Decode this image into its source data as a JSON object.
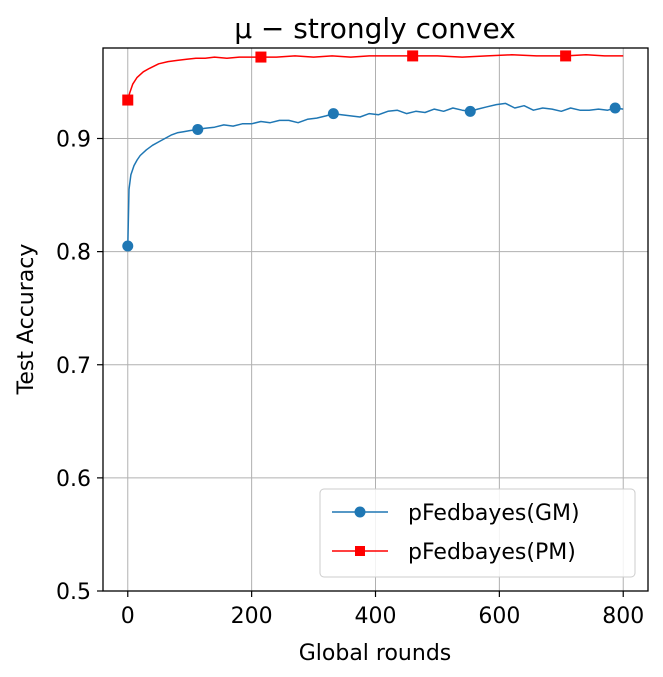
{
  "chart_data": {
    "type": "line",
    "title": "μ − strongly convex",
    "xlabel": "Global rounds",
    "ylabel": "Test Accuracy",
    "xlim": [
      -40,
      840
    ],
    "ylim": [
      0.5,
      0.98
    ],
    "xticks": [
      0,
      200,
      400,
      600,
      800
    ],
    "xtick_labels": [
      "0",
      "200",
      "400",
      "600",
      "800"
    ],
    "yticks": [
      0.5,
      0.6,
      0.7,
      0.8,
      0.9
    ],
    "ytick_labels": [
      "0.5",
      "0.6",
      "0.7",
      "0.8",
      "0.9"
    ],
    "grid": true,
    "legend_position": "bottom-right",
    "series": [
      {
        "name": "pFedbayes(GM)",
        "color": "#1f77b4",
        "marker": "circle",
        "x": [
          0,
          2,
          5,
          10,
          15,
          20,
          30,
          40,
          50,
          60,
          70,
          80,
          90,
          100,
          113,
          125,
          140,
          155,
          170,
          185,
          200,
          215,
          230,
          245,
          260,
          275,
          290,
          305,
          320,
          332,
          345,
          360,
          375,
          390,
          405,
          420,
          435,
          450,
          465,
          480,
          495,
          510,
          525,
          540,
          553,
          565,
          580,
          595,
          610,
          625,
          640,
          655,
          670,
          685,
          700,
          715,
          730,
          745,
          760,
          775,
          787,
          800
        ],
        "y": [
          0.805,
          0.855,
          0.868,
          0.876,
          0.881,
          0.885,
          0.89,
          0.894,
          0.897,
          0.9,
          0.903,
          0.905,
          0.906,
          0.907,
          0.908,
          0.909,
          0.91,
          0.912,
          0.911,
          0.913,
          0.913,
          0.915,
          0.914,
          0.916,
          0.916,
          0.914,
          0.917,
          0.918,
          0.92,
          0.922,
          0.921,
          0.92,
          0.919,
          0.922,
          0.921,
          0.924,
          0.925,
          0.922,
          0.924,
          0.923,
          0.926,
          0.924,
          0.927,
          0.925,
          0.924,
          0.926,
          0.928,
          0.93,
          0.931,
          0.927,
          0.929,
          0.925,
          0.927,
          0.926,
          0.924,
          0.927,
          0.925,
          0.925,
          0.926,
          0.925,
          0.927,
          0.926
        ],
        "marker_x": [
          0,
          113,
          332,
          553,
          787
        ],
        "marker_y": [
          0.805,
          0.908,
          0.922,
          0.924,
          0.927
        ]
      },
      {
        "name": "pFedbayes(PM)",
        "color": "#ff0000",
        "marker": "square",
        "x": [
          0,
          3,
          8,
          15,
          25,
          35,
          50,
          65,
          80,
          95,
          110,
          125,
          140,
          160,
          180,
          200,
          215,
          240,
          270,
          300,
          330,
          360,
          390,
          420,
          460,
          500,
          540,
          580,
          620,
          660,
          707,
          740,
          770,
          800
        ],
        "y": [
          0.934,
          0.94,
          0.948,
          0.954,
          0.959,
          0.962,
          0.966,
          0.968,
          0.969,
          0.97,
          0.971,
          0.971,
          0.972,
          0.971,
          0.972,
          0.972,
          0.972,
          0.972,
          0.973,
          0.972,
          0.973,
          0.972,
          0.973,
          0.973,
          0.973,
          0.973,
          0.972,
          0.973,
          0.974,
          0.973,
          0.973,
          0.974,
          0.973,
          0.973
        ],
        "marker_x": [
          0,
          215,
          460,
          707
        ],
        "marker_y": [
          0.934,
          0.972,
          0.973,
          0.973
        ]
      }
    ]
  }
}
